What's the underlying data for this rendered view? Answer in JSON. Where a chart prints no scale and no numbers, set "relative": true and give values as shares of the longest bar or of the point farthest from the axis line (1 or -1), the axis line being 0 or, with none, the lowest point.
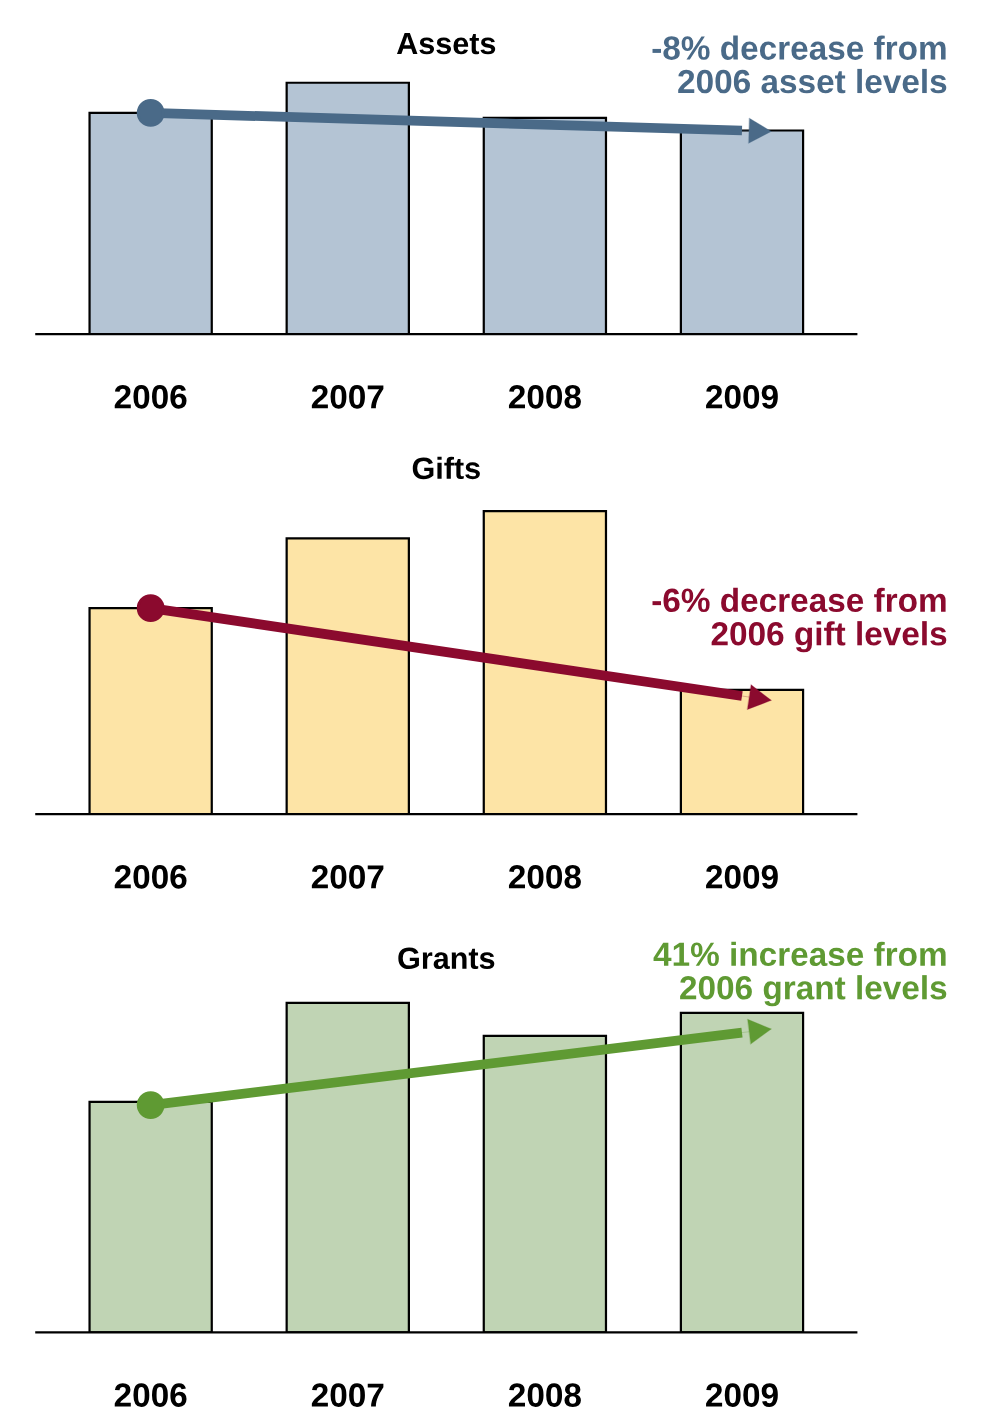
{
  "chart_data": [
    {
      "type": "bar",
      "title": "Assets",
      "categories": [
        "2006",
        "2007",
        "2008",
        "2009"
      ],
      "relative": true,
      "series": [
        {
          "color": "#b4c4d4",
          "values": [
            0.88,
            1,
            0.86,
            0.81
          ]
        },
        {
          "type": "line",
          "color": "#4a6a88",
          "values": [
            0.88,
            null,
            null,
            0.81
          ]
        }
      ],
      "marker": "circle",
      "annotations": [
        "-8% decrease from\n2006 asset levels"
      ]
    },
    {
      "type": "bar",
      "title": "Gifts",
      "categories": [
        "2006",
        "2007",
        "2008",
        "2009"
      ],
      "relative": true,
      "series": [
        {
          "color": "#fde4a6",
          "values": [
            0.68,
            0.91,
            1,
            0.41
          ]
        },
        {
          "type": "line",
          "color": "#8b0a2e",
          "values": [
            0.68,
            null,
            null,
            0.39
          ]
        }
      ],
      "marker": "circle",
      "annotations": [
        "-6% decrease from\n2006 gift levels"
      ]
    },
    {
      "type": "bar",
      "title": "Grants",
      "categories": [
        "2006",
        "2007",
        "2008",
        "2009"
      ],
      "relative": true,
      "series": [
        {
          "color": "#c0d4b4",
          "values": [
            0.7,
            1,
            0.9,
            0.97
          ]
        },
        {
          "type": "line",
          "color": "#5f9a33",
          "values": [
            0.69,
            null,
            null,
            0.91
          ]
        }
      ],
      "marker": "circle",
      "annotations": [
        "41% increase from\n2006 grant levels"
      ]
    }
  ]
}
